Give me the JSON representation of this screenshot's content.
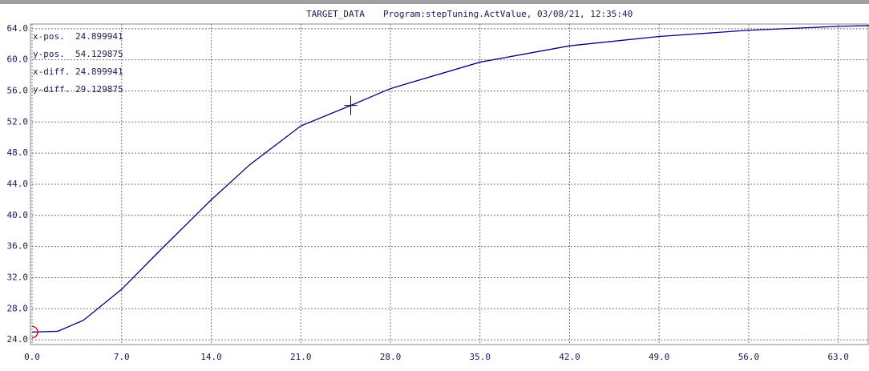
{
  "chart_data": {
    "type": "line",
    "title": "TARGET_DATA",
    "subtitle": "Program:stepTuning.ActValue, 03/08/21, 12:35:40",
    "x": [
      0,
      2,
      4,
      7,
      10,
      14,
      17,
      21,
      24.9,
      28,
      35,
      42,
      49,
      56,
      63,
      65.4
    ],
    "series": [
      {
        "color": "#000080",
        "values": [
          25,
          25.1,
          26.5,
          30.5,
          35.5,
          42,
          46.5,
          51.5,
          54.13,
          56.3,
          59.7,
          61.8,
          63.0,
          63.8,
          64.3,
          64.4
        ]
      }
    ],
    "xlim": [
      0,
      65.4
    ],
    "ylim": [
      23.6,
      64.6
    ],
    "xticks": [
      {
        "value": 0,
        "label": "0.0"
      },
      {
        "value": 7,
        "label": "7.0"
      },
      {
        "value": 14,
        "label": "14.0"
      },
      {
        "value": 21,
        "label": "21.0"
      },
      {
        "value": 28,
        "label": "28.0"
      },
      {
        "value": 35,
        "label": "35.0"
      },
      {
        "value": 42,
        "label": "42.0"
      },
      {
        "value": 49,
        "label": "49.0"
      },
      {
        "value": 56,
        "label": "56.0"
      },
      {
        "value": 63,
        "label": "63.0"
      }
    ],
    "yticks": [
      {
        "value": 24,
        "label": "24.0"
      },
      {
        "value": 28,
        "label": "28.0"
      },
      {
        "value": 32,
        "label": "32.0"
      },
      {
        "value": 36,
        "label": "36.0"
      },
      {
        "value": 40,
        "label": "40.0"
      },
      {
        "value": 44,
        "label": "44.0"
      },
      {
        "value": 48,
        "label": "48.0"
      },
      {
        "value": 52,
        "label": "52.0"
      },
      {
        "value": 56,
        "label": "56.0"
      },
      {
        "value": 60,
        "label": "60.0"
      },
      {
        "value": 64,
        "label": "64.0"
      }
    ],
    "grid": true,
    "readout": [
      {
        "label": "x-pos.",
        "value": 24.899941
      },
      {
        "label": "y-pos.",
        "value": 54.129875
      },
      {
        "label": "x-diff.",
        "value": 24.899941
      },
      {
        "label": "y-diff.",
        "value": 29.129875
      }
    ]
  }
}
